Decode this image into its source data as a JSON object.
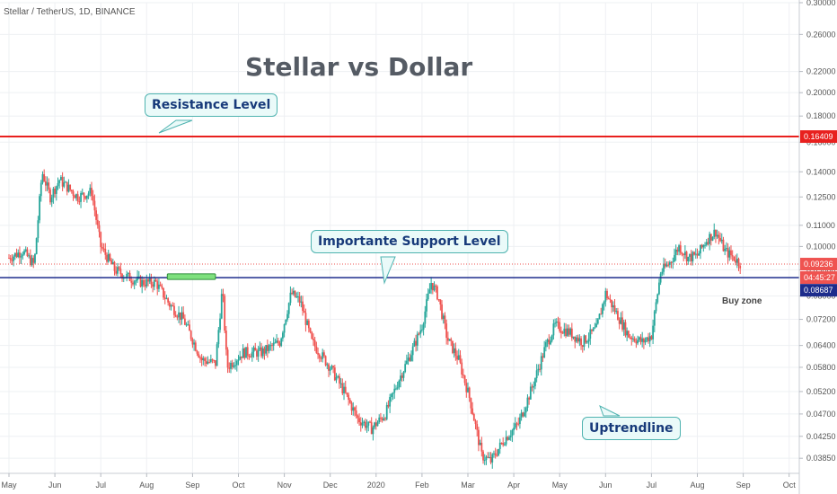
{
  "symbol_label": "Stellar / TetherUS, 1D, BINANCE",
  "title": "Stellar vs Dollar",
  "annotations": {
    "resistance": "Resistance Level",
    "support": "Importante Support Level",
    "uptrend": "Uptrendline",
    "buy_zone": "Buy zone"
  },
  "colors": {
    "up": "#26a69a",
    "down": "#ef5350",
    "resistance": "#e8201e",
    "support": "#1d2c8c",
    "buy_zone": "#7ee07e",
    "grid": "#eef0f3"
  },
  "chart_data": {
    "type": "candlestick",
    "x_axis": {
      "ticks": [
        "May",
        "Jun",
        "Jul",
        "Aug",
        "Sep",
        "Oct",
        "Nov",
        "Dec",
        "2020",
        "Feb",
        "Mar",
        "Apr",
        "May",
        "Jun",
        "Jul",
        "Aug",
        "Sep",
        "Oct"
      ]
    },
    "y_axis": {
      "scale": "log",
      "range": [
        0.037,
        0.3
      ],
      "ticks": [
        "0.30000",
        "0.26000",
        "0.22000",
        "0.20000",
        "0.18000",
        "0.16000",
        "0.14000",
        "0.12500",
        "0.11000",
        "0.10000",
        "0.09000",
        "0.08000",
        "0.07200",
        "0.06400",
        "0.05800",
        "0.05200",
        "0.04700",
        "0.04250",
        "0.03850"
      ]
    },
    "price_labels": [
      {
        "value": "0.16409",
        "color": "#e8201e"
      },
      {
        "value": "0.09236",
        "color": "#ef5350"
      },
      {
        "value": "04:45:27",
        "color": "#ef5350"
      },
      {
        "value": "0.08687",
        "color": "#1d2c8c"
      }
    ],
    "levels": {
      "resistance": 0.16409,
      "support": 0.08687,
      "last_price": 0.09236
    },
    "buy_zone": {
      "from": 0.0862,
      "to": 0.0884,
      "start_month": "Aug",
      "end_month": "Sep"
    },
    "anchors": [
      {
        "t": 0,
        "v": 0.095
      },
      {
        "t": 0.3,
        "v": 0.098
      },
      {
        "t": 0.55,
        "v": 0.092
      },
      {
        "t": 0.72,
        "v": 0.14
      },
      {
        "t": 0.9,
        "v": 0.125
      },
      {
        "t": 1.1,
        "v": 0.135
      },
      {
        "t": 1.5,
        "v": 0.125
      },
      {
        "t": 1.8,
        "v": 0.128
      },
      {
        "t": 2.0,
        "v": 0.1
      },
      {
        "t": 2.3,
        "v": 0.09
      },
      {
        "t": 2.6,
        "v": 0.087
      },
      {
        "t": 2.9,
        "v": 0.085
      },
      {
        "t": 3.2,
        "v": 0.085
      },
      {
        "t": 3.5,
        "v": 0.077
      },
      {
        "t": 3.8,
        "v": 0.072
      },
      {
        "t": 4.2,
        "v": 0.06
      },
      {
        "t": 4.5,
        "v": 0.059
      },
      {
        "t": 4.65,
        "v": 0.083
      },
      {
        "t": 4.75,
        "v": 0.058
      },
      {
        "t": 5.1,
        "v": 0.062
      },
      {
        "t": 5.5,
        "v": 0.062
      },
      {
        "t": 5.9,
        "v": 0.065
      },
      {
        "t": 6.15,
        "v": 0.081
      },
      {
        "t": 6.35,
        "v": 0.078
      },
      {
        "t": 6.6,
        "v": 0.065
      },
      {
        "t": 7.0,
        "v": 0.058
      },
      {
        "t": 7.3,
        "v": 0.052
      },
      {
        "t": 7.6,
        "v": 0.046
      },
      {
        "t": 7.9,
        "v": 0.044
      },
      {
        "t": 8.2,
        "v": 0.047
      },
      {
        "t": 8.5,
        "v": 0.055
      },
      {
        "t": 8.8,
        "v": 0.063
      },
      {
        "t": 9.0,
        "v": 0.07
      },
      {
        "t": 9.2,
        "v": 0.085
      },
      {
        "t": 9.35,
        "v": 0.08
      },
      {
        "t": 9.55,
        "v": 0.066
      },
      {
        "t": 9.8,
        "v": 0.06
      },
      {
        "t": 10.05,
        "v": 0.05
      },
      {
        "t": 10.3,
        "v": 0.039
      },
      {
        "t": 10.5,
        "v": 0.038
      },
      {
        "t": 10.8,
        "v": 0.042
      },
      {
        "t": 11.1,
        "v": 0.045
      },
      {
        "t": 11.4,
        "v": 0.053
      },
      {
        "t": 11.7,
        "v": 0.064
      },
      {
        "t": 11.9,
        "v": 0.07
      },
      {
        "t": 12.2,
        "v": 0.068
      },
      {
        "t": 12.5,
        "v": 0.065
      },
      {
        "t": 12.8,
        "v": 0.069
      },
      {
        "t": 13.0,
        "v": 0.081
      },
      {
        "t": 13.2,
        "v": 0.075
      },
      {
        "t": 13.5,
        "v": 0.067
      },
      {
        "t": 13.8,
        "v": 0.065
      },
      {
        "t": 14.0,
        "v": 0.067
      },
      {
        "t": 14.2,
        "v": 0.089
      },
      {
        "t": 14.4,
        "v": 0.093
      },
      {
        "t": 14.6,
        "v": 0.1
      },
      {
        "t": 14.8,
        "v": 0.095
      },
      {
        "t": 15.0,
        "v": 0.096
      },
      {
        "t": 15.2,
        "v": 0.103
      },
      {
        "t": 15.4,
        "v": 0.107
      },
      {
        "t": 15.6,
        "v": 0.098
      },
      {
        "t": 15.8,
        "v": 0.095
      },
      {
        "t": 15.95,
        "v": 0.0924
      }
    ]
  }
}
